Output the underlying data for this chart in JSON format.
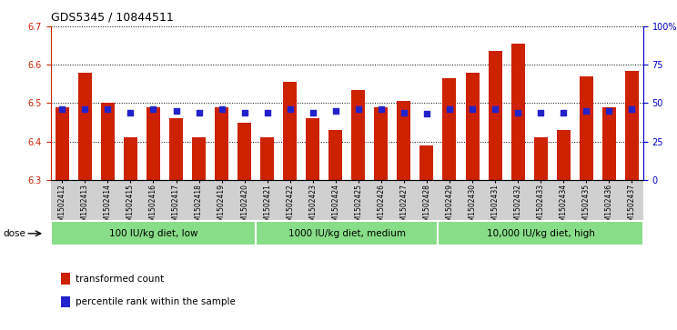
{
  "title": "GDS5345 / 10844511",
  "samples": [
    "GSM1502412",
    "GSM1502413",
    "GSM1502414",
    "GSM1502415",
    "GSM1502416",
    "GSM1502417",
    "GSM1502418",
    "GSM1502419",
    "GSM1502420",
    "GSM1502421",
    "GSM1502422",
    "GSM1502423",
    "GSM1502424",
    "GSM1502425",
    "GSM1502426",
    "GSM1502427",
    "GSM1502428",
    "GSM1502429",
    "GSM1502430",
    "GSM1502431",
    "GSM1502432",
    "GSM1502433",
    "GSM1502434",
    "GSM1502435",
    "GSM1502436",
    "GSM1502437"
  ],
  "bar_values": [
    6.49,
    6.58,
    6.5,
    6.41,
    6.49,
    6.46,
    6.41,
    6.49,
    6.45,
    6.41,
    6.555,
    6.46,
    6.43,
    6.535,
    6.49,
    6.505,
    6.39,
    6.565,
    6.58,
    6.635,
    6.655,
    6.41,
    6.43,
    6.57,
    6.49,
    6.585
  ],
  "percentile_values": [
    46,
    46,
    46,
    44,
    46,
    45,
    44,
    46,
    44,
    44,
    46,
    44,
    45,
    46,
    46,
    44,
    43,
    46,
    46,
    46,
    44,
    44,
    44,
    45,
    45,
    46
  ],
  "bar_color": "#cc2200",
  "dot_color": "#2222cc",
  "ylim_left": [
    6.3,
    6.7
  ],
  "ylim_right": [
    0,
    100
  ],
  "yticks_left": [
    6.3,
    6.4,
    6.5,
    6.6,
    6.7
  ],
  "yticks_right": [
    0,
    25,
    50,
    75,
    100
  ],
  "ytick_labels_right": [
    "0",
    "25",
    "50",
    "75",
    "100%"
  ],
  "groups": [
    {
      "label": "100 IU/kg diet, low",
      "start": 0,
      "end": 9
    },
    {
      "label": "1000 IU/kg diet, medium",
      "start": 9,
      "end": 17
    },
    {
      "label": "10,000 IU/kg diet, high",
      "start": 17,
      "end": 26
    }
  ],
  "group_color": "#88dd88",
  "group_edge_color": "#44aa44",
  "legend_items": [
    {
      "color": "#cc2200",
      "label": "transformed count"
    },
    {
      "color": "#2222cc",
      "label": "percentile rank within the sample"
    }
  ],
  "dose_label": "dose",
  "plot_bg_color": "#ffffff",
  "tick_area_bg": "#d0d0d0"
}
